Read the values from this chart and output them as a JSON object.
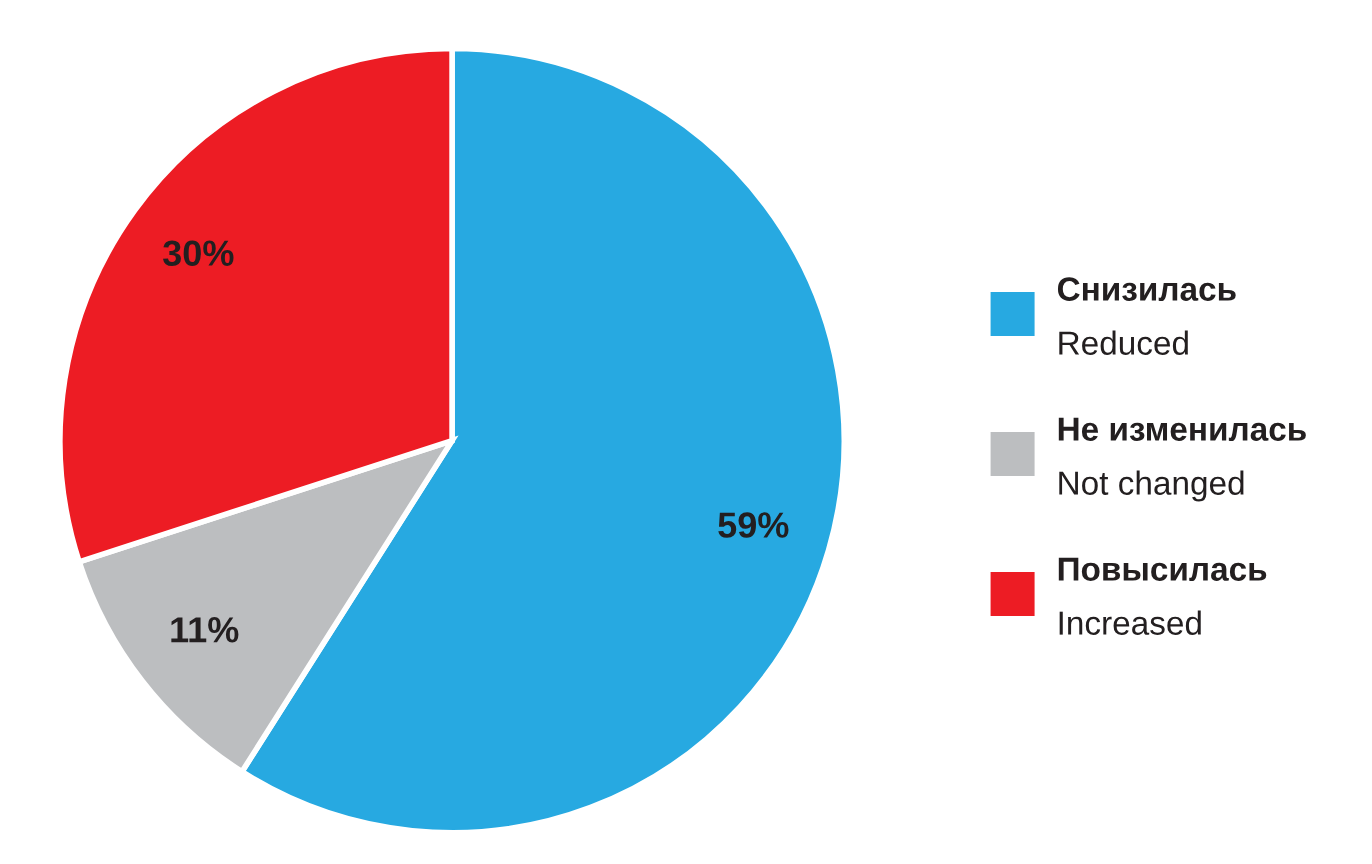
{
  "chart_data": {
    "type": "pie",
    "categories": [
      "Снизилась\nReduced",
      "Не изменилась\nNot changed",
      "Повысилась\nIncreased"
    ],
    "values": [
      59,
      11,
      30
    ],
    "colors": [
      "#27a9e1",
      "#bcbec0",
      "#ed1c24"
    ],
    "value_labels": [
      "59%",
      "11%",
      "30%"
    ],
    "legend": "right"
  }
}
